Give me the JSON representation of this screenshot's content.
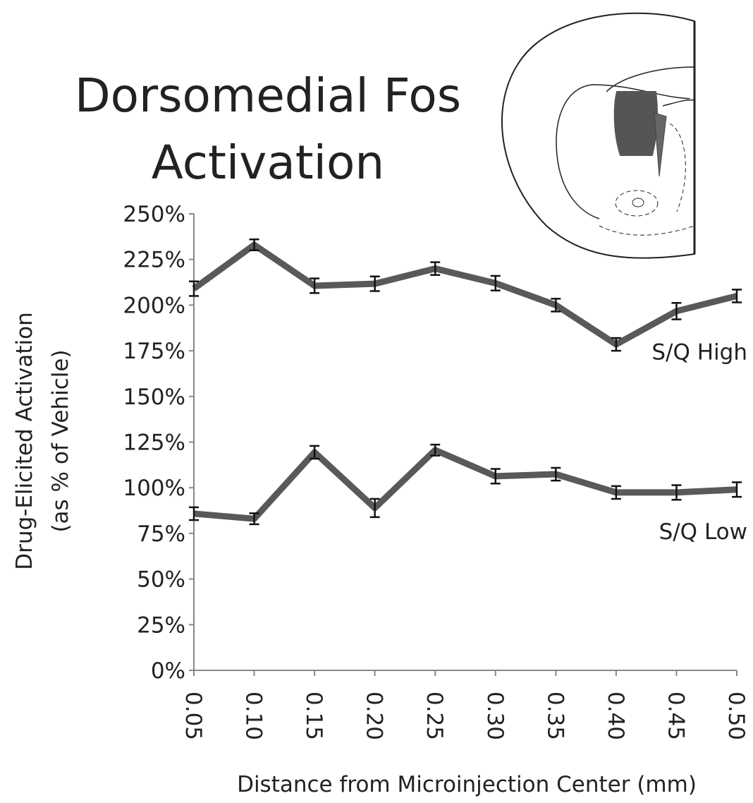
{
  "chart_data": {
    "type": "line",
    "title": [
      "Dorsomedial Fos",
      "Activation"
    ],
    "ylabel": [
      "Drug-Elicited Activation",
      "(as % of Vehicle)"
    ],
    "xlabel": "Distance from Microinjection Center (mm)",
    "categories": [
      "0.05",
      "0.10",
      "0.15",
      "0.20",
      "0.25",
      "0.30",
      "0.35",
      "0.40",
      "0.45",
      "0.50"
    ],
    "series": [
      {
        "name": "S/Q High",
        "color": "#595959",
        "values": [
          209,
          233,
          210.6,
          211.7,
          220,
          212,
          200,
          178.5,
          196.7,
          205
        ],
        "errors": [
          4,
          3,
          4,
          4,
          3.5,
          4,
          3.5,
          3.5,
          4.5,
          3.5
        ]
      },
      {
        "name": "S/Q Low",
        "color": "#595959",
        "values": [
          85.8,
          83,
          119.4,
          88.9,
          120.6,
          106.3,
          107.4,
          97.4,
          97.4,
          99
        ],
        "errors": [
          3.5,
          3,
          3.5,
          5,
          3,
          4,
          3.5,
          3.5,
          4,
          4
        ]
      }
    ],
    "ylim": [
      0,
      250
    ],
    "yticks": [
      {
        "value": 0,
        "label": "0%"
      },
      {
        "value": 25,
        "label": "25%"
      },
      {
        "value": 50,
        "label": "50%"
      },
      {
        "value": 75,
        "label": "75%"
      },
      {
        "value": 100,
        "label": "100%"
      },
      {
        "value": 125,
        "label": "125%"
      },
      {
        "value": 150,
        "label": "150%"
      },
      {
        "value": 175,
        "label": "175%"
      },
      {
        "value": 200,
        "label": "200%"
      },
      {
        "value": 225,
        "label": "225%"
      },
      {
        "value": 250,
        "label": "250%"
      }
    ]
  }
}
